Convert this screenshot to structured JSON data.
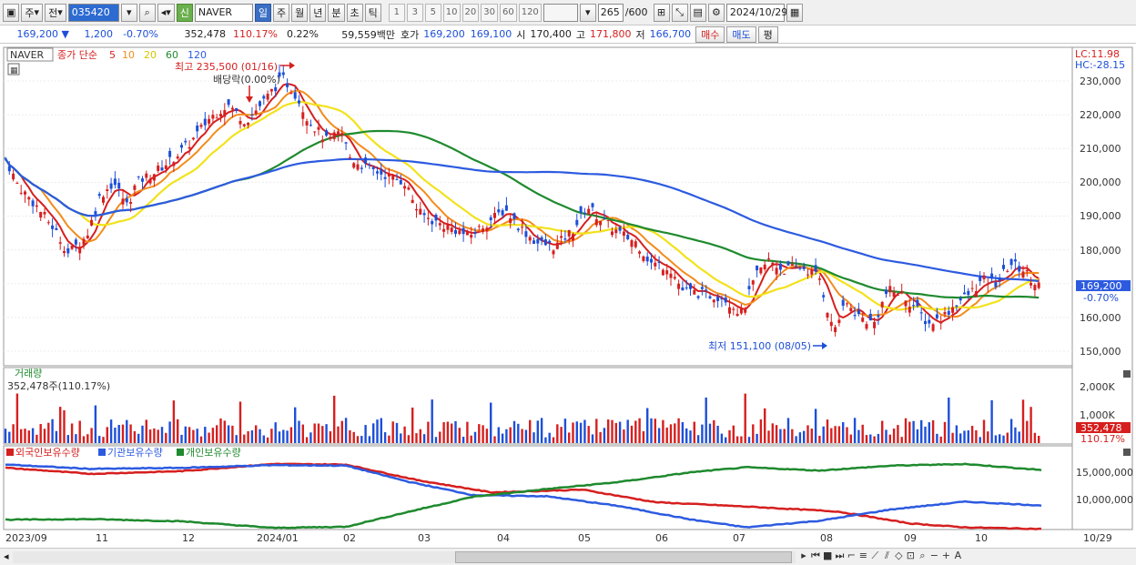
{
  "toolbar": {
    "period_label": "주",
    "prev_label": "전",
    "code_value": "035420",
    "credit_label": "신",
    "name_value": "NAVER",
    "timeframes": [
      "일",
      "주",
      "월",
      "년",
      "분",
      "초",
      "틱"
    ],
    "active_timeframe": "일",
    "intervals": [
      "1",
      "3",
      "5",
      "10",
      "20",
      "30",
      "60",
      "120"
    ],
    "count_value": "265",
    "count_max": "/600",
    "date_value": "2024/10/29"
  },
  "quote": {
    "price": "169,200",
    "change": "1,200",
    "change_pct": "-0.70%",
    "volume": "352,478",
    "volume_ratio": "110.17%",
    "turnover_pct": "0.22%",
    "amount": "59,559백만",
    "ask_label": "호가",
    "ask_price": "169,200",
    "bid_price": "169,100",
    "open_label": "시",
    "open_price": "170,400",
    "high_label": "고",
    "high_price": "171,800",
    "low_label": "저",
    "low_price": "166,700",
    "buy_label": "매수",
    "sell_label": "매도",
    "eval_label": "평"
  },
  "price_panel": {
    "symbol": "NAVER",
    "legend_prefix": "종가 단순",
    "ma_periods": [
      "5",
      "10",
      "20",
      "60",
      "120"
    ],
    "ma_colors": [
      "#d61f1f",
      "#f28c1c",
      "#f2e21c",
      "#1f8a2e",
      "#2d5be0"
    ],
    "high_annotation": "최고 235,500 (01/16)",
    "dividend_annotation": "배당락(0.00%)",
    "low_annotation": "최저 151,100 (08/05)",
    "lc_label": "LC:11.98",
    "hc_label": "HC:-28.15",
    "current_price_tag": "169,200",
    "current_change_tag": "-0.70%",
    "y_ticks": [
      "230,000",
      "220,000",
      "210,000",
      "200,000",
      "190,000",
      "180,000",
      "170,000",
      "160,000",
      "150,000"
    ]
  },
  "volume_panel": {
    "title": "거래량",
    "summary": "352,478주(110.17%)",
    "y_ticks": [
      "2,000K",
      "1,000K"
    ],
    "current_tag": "352,478",
    "current_pct_tag": "110.17%"
  },
  "holdings_panel": {
    "legend": [
      "외국인보유수량",
      "기관보유수량",
      "개인보유수량"
    ],
    "legend_colors": [
      "#d61f1f",
      "#2d5be0",
      "#1f8a2e"
    ],
    "y_ticks": [
      "15,000,000",
      "10,000,000"
    ]
  },
  "x_axis": {
    "labels": [
      "2023/09",
      "11",
      "12",
      "2024/01",
      "02",
      "03",
      "04",
      "05",
      "06",
      "07",
      "08",
      "09",
      "10"
    ],
    "right_label": "10/29"
  },
  "bottom_icons": [
    "play-icon",
    "rewind-icon",
    "stop-icon",
    "forward-icon",
    "zoom-icon",
    "minus-icon",
    "plus-icon",
    "font-icon"
  ]
}
